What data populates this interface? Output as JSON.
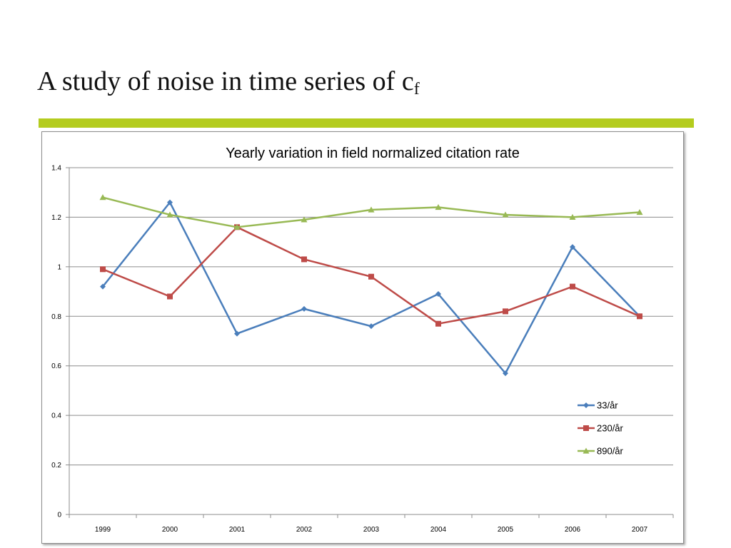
{
  "slide": {
    "title_main": "A study of noise in time series of c",
    "title_sub": "f",
    "accent_color": "#b4cc1e"
  },
  "chart_data": {
    "type": "line",
    "title": "Yearly variation in field normalized citation rate",
    "xlabel": "",
    "ylabel": "",
    "categories": [
      "1999",
      "2000",
      "2001",
      "2002",
      "2003",
      "2004",
      "2005",
      "2006",
      "2007"
    ],
    "ylim": [
      0,
      1.4
    ],
    "yticks": [
      0,
      0.2,
      0.4,
      0.6,
      0.8,
      1,
      1.2,
      1.4
    ],
    "grid": true,
    "legend_position": "right",
    "series": [
      {
        "name": "33/år",
        "color": "#4a7ebb",
        "marker": "diamond",
        "values": [
          0.92,
          1.26,
          0.73,
          0.83,
          0.76,
          0.89,
          0.57,
          1.08,
          0.8
        ]
      },
      {
        "name": "230/år",
        "color": "#be4b48",
        "marker": "square",
        "values": [
          0.99,
          0.88,
          1.16,
          1.03,
          0.96,
          0.77,
          0.82,
          0.92,
          0.8
        ]
      },
      {
        "name": "890/år",
        "color": "#98b954",
        "marker": "triangle",
        "values": [
          1.28,
          1.21,
          1.16,
          1.19,
          1.23,
          1.24,
          1.21,
          1.2,
          1.22
        ]
      }
    ]
  }
}
